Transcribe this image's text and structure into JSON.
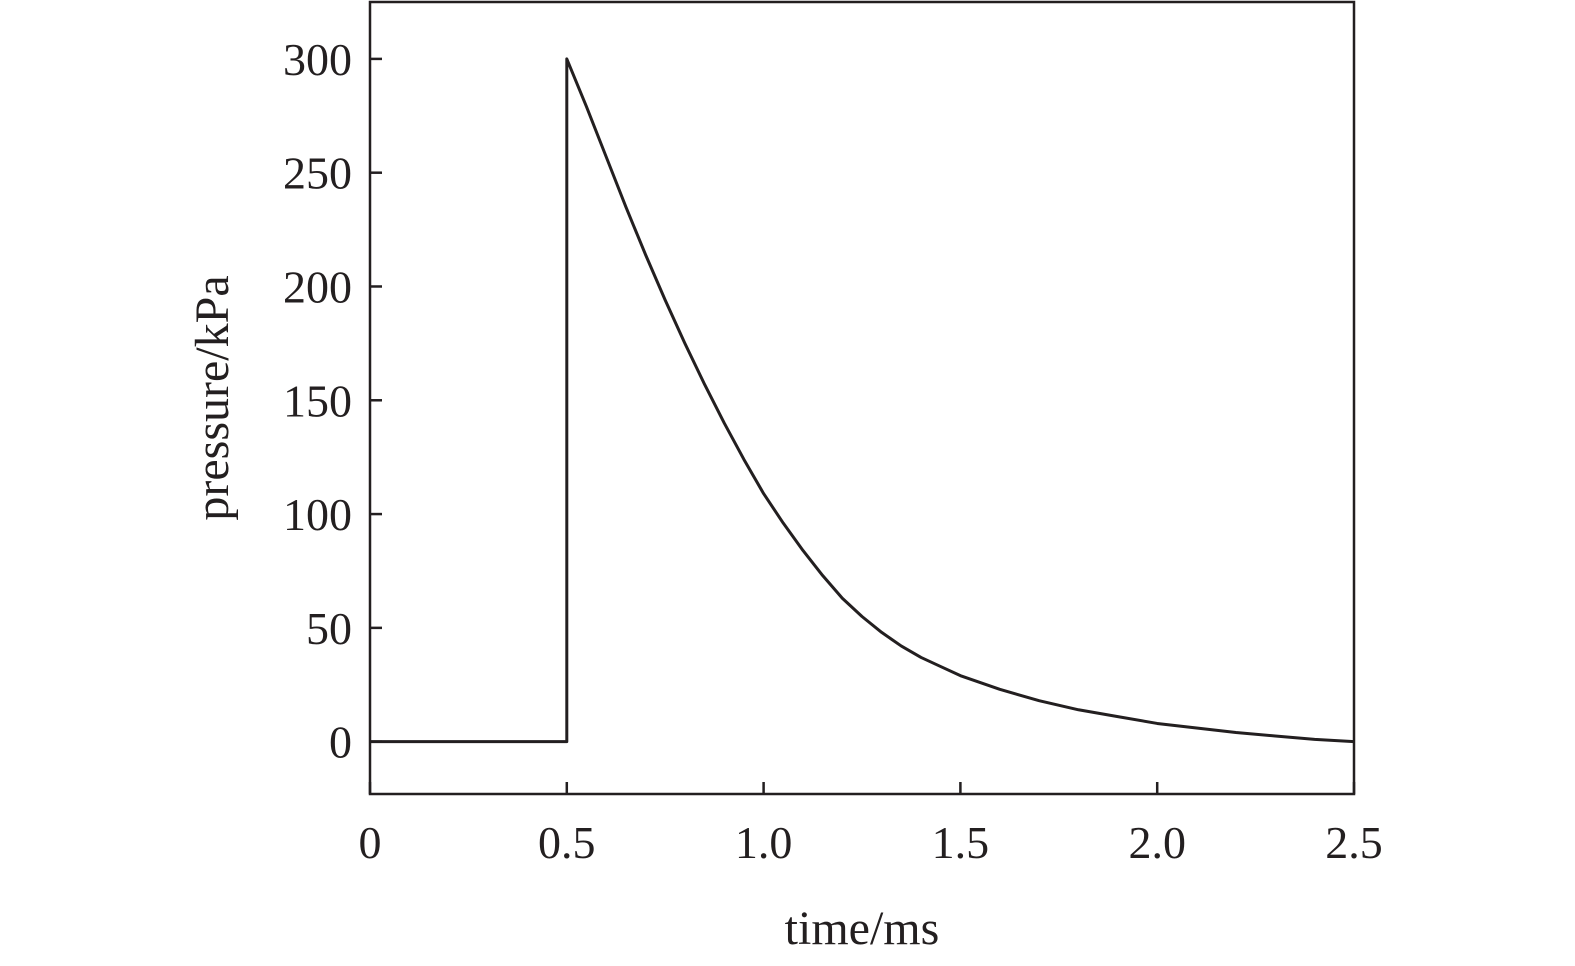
{
  "chart_data": {
    "type": "line",
    "title": "",
    "xlabel": "time/ms",
    "ylabel": "pressure/kPa",
    "xlim": [
      0,
      2.5
    ],
    "ylim": [
      -23,
      325
    ],
    "xticks": [
      0,
      0.5,
      1.0,
      1.5,
      2.0,
      2.5
    ],
    "xtick_labels": [
      "0",
      "0.5",
      "1.0",
      "1.5",
      "2.0",
      "2.5"
    ],
    "yticks": [
      0,
      50,
      100,
      150,
      200,
      250,
      300
    ],
    "ytick_labels": [
      "0",
      "50",
      "100",
      "150",
      "200",
      "250",
      "300"
    ],
    "grid": false,
    "legend": "none",
    "line_color": "#231f20",
    "series": [
      {
        "x": [
          0,
          0.5,
          0.5,
          0.55,
          0.6,
          0.65,
          0.7,
          0.75,
          0.8,
          0.85,
          0.9,
          0.95,
          1.0,
          1.05,
          1.1,
          1.15,
          1.2,
          1.25,
          1.3,
          1.35,
          1.4,
          1.45,
          1.5,
          1.6,
          1.7,
          1.8,
          1.9,
          2.0,
          2.1,
          2.2,
          2.3,
          2.4,
          2.5
        ],
        "y": [
          0,
          0,
          300,
          279,
          257,
          235,
          214,
          194,
          175,
          157,
          140,
          124,
          109,
          96,
          84,
          73,
          63,
          55,
          48,
          42,
          37,
          33,
          29,
          23,
          18,
          14,
          11,
          8,
          6,
          4,
          2.5,
          1,
          0
        ]
      }
    ]
  }
}
